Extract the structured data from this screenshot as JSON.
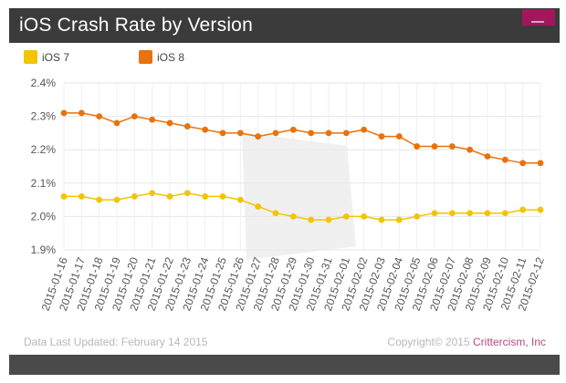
{
  "header": {
    "title": "iOS Crash Rate by Version"
  },
  "legend": [
    {
      "label": "iOS 7",
      "color": "#f2c500"
    },
    {
      "label": "iOS 8",
      "color": "#e8720c"
    }
  ],
  "footer": {
    "updated": "Data Last Updated: February 14 2015",
    "copyright_prefix": "Copyright© 2015 ",
    "brand": "Crittercism, Inc"
  },
  "chart_data": {
    "type": "line",
    "title": "iOS Crash Rate by Version",
    "xlabel": "",
    "ylabel": "",
    "ylim": [
      1.9,
      2.4
    ],
    "yticks": [
      1.9,
      2.0,
      2.1,
      2.2,
      2.3,
      2.4
    ],
    "ytick_labels": [
      "1.9%",
      "2.0%",
      "2.1%",
      "2.2%",
      "2.3%",
      "2.4%"
    ],
    "grid": true,
    "legend_position": "top-left",
    "categories": [
      "2015-01-16",
      "2015-01-17",
      "2015-01-18",
      "2015-01-19",
      "2015-01-20",
      "2015-01-21",
      "2015-01-22",
      "2015-01-23",
      "2015-01-24",
      "2015-01-25",
      "2015-01-26",
      "2015-01-27",
      "2015-01-28",
      "2015-01-29",
      "2015-01-30",
      "2015-01-31",
      "2015-02-01",
      "2015-02-02",
      "2015-02-03",
      "2015-02-04",
      "2015-02-05",
      "2015-02-06",
      "2015-02-07",
      "2015-02-08",
      "2015-02-09",
      "2015-02-10",
      "2015-02-11",
      "2015-02-12"
    ],
    "series": [
      {
        "name": "iOS 7",
        "color": "#f2c500",
        "values": [
          2.06,
          2.06,
          2.05,
          2.05,
          2.06,
          2.07,
          2.06,
          2.07,
          2.06,
          2.06,
          2.05,
          2.03,
          2.01,
          2.0,
          1.99,
          1.99,
          2.0,
          2.0,
          1.99,
          1.99,
          2.0,
          2.01,
          2.01,
          2.01,
          2.01,
          2.01,
          2.02,
          2.02
        ]
      },
      {
        "name": "iOS 8",
        "color": "#e8720c",
        "values": [
          2.31,
          2.31,
          2.3,
          2.28,
          2.3,
          2.29,
          2.28,
          2.27,
          2.26,
          2.25,
          2.25,
          2.24,
          2.25,
          2.26,
          2.25,
          2.25,
          2.25,
          2.26,
          2.24,
          2.24,
          2.21,
          2.21,
          2.21,
          2.2,
          2.18,
          2.17,
          2.16,
          2.16
        ]
      }
    ]
  }
}
